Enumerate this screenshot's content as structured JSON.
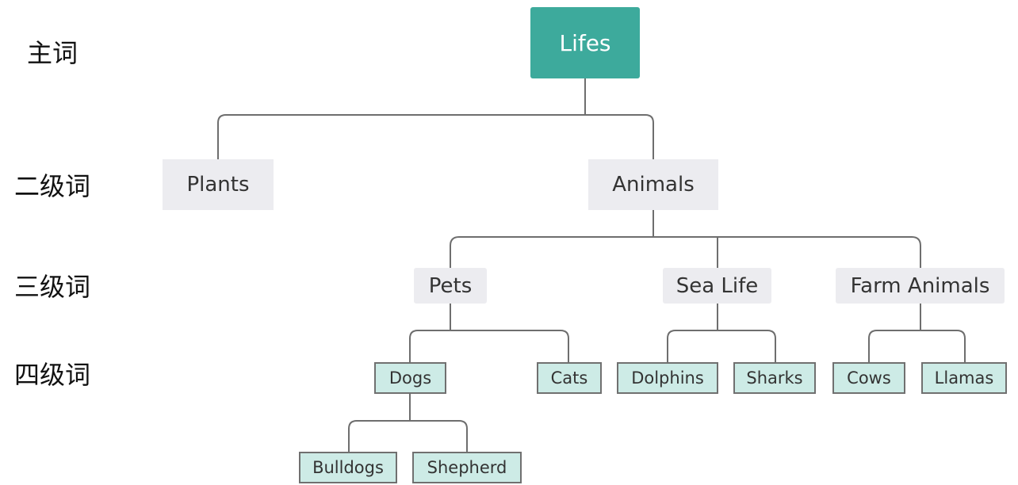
{
  "colors": {
    "root_fill": "#3daa9c",
    "level2_fill": "#ececf0",
    "level3_fill": "#ececf0",
    "leaf_fill": "#cdebe6",
    "leaf_border": "#707070",
    "connector": "#6e6e6e"
  },
  "levels": {
    "main": "主词",
    "second": "二级词",
    "third": "三级词",
    "fourth": "四级词"
  },
  "tree": {
    "root": "Lifes",
    "plants": "Plants",
    "animals": "Animals",
    "pets": "Pets",
    "sea_life": "Sea Life",
    "farm_animals": "Farm Animals",
    "dogs": "Dogs",
    "cats": "Cats",
    "dolphins": "Dolphins",
    "sharks": "Sharks",
    "cows": "Cows",
    "llamas": "Llamas",
    "bulldogs": "Bulldogs",
    "shepherd": "Shepherd"
  }
}
